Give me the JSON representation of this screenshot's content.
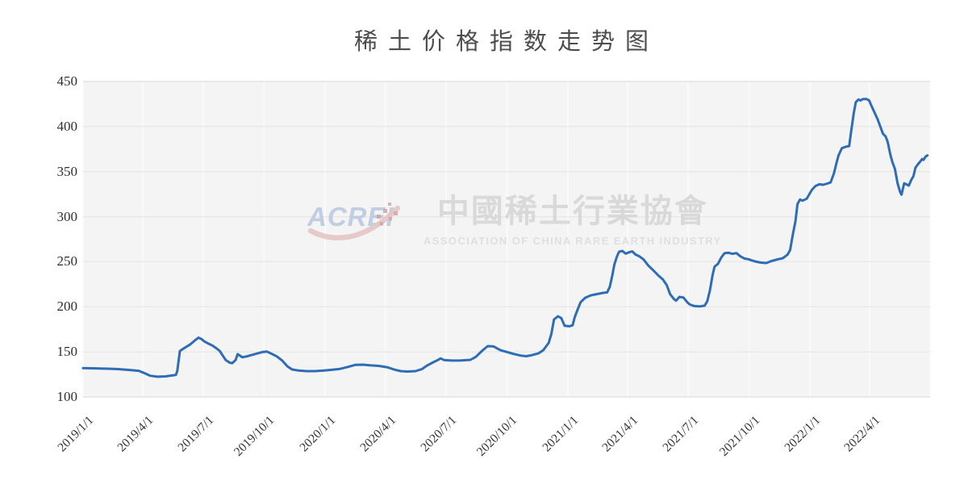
{
  "page": {
    "background": "#ffffff"
  },
  "watermark": {
    "logo_text": "ACREI",
    "chinese": "中國稀土行業協會",
    "english": "ASSOCIATION OF CHINA RARE EARTH INDUSTRY",
    "logo_color": "#b7c7e1",
    "swoosh_color": "#e2bebe",
    "dot_color": "#d68f8f",
    "chinese_color": "#d5d5d5",
    "english_color": "#dcdcdc"
  },
  "chart_data": {
    "type": "line",
    "title": "稀土价格指数走势图",
    "series_name": "稀土价格指数",
    "line_color": "#2e6cb5",
    "plot_bg": "#f4f4f4",
    "h_grid_color": "#e9e9e9",
    "v_grid_color": "#fafafa",
    "grid": true,
    "legend": "none",
    "ylim": [
      100,
      450
    ],
    "y_tick_step": 50,
    "y_tick_labels": [
      "450",
      "400",
      "350",
      "300",
      "250",
      "200",
      "150",
      "100"
    ],
    "x_ticks": [
      "2019/1/1",
      "2019/4/1",
      "2019/7/1",
      "2019/10/1",
      "2020/1/1",
      "2020/4/1",
      "2020/7/1",
      "2020/10/1",
      "2021/1/1",
      "2021/4/1",
      "2021/7/1",
      "2021/10/1",
      "2022/1/1",
      "2022/4/1"
    ],
    "x_axis_end": "2022/7/1",
    "points": [
      [
        "2019/1/1",
        132
      ],
      [
        "2019/1/16",
        131.8
      ],
      [
        "2019/2/3",
        131.4
      ],
      [
        "2019/2/21",
        131
      ],
      [
        "2019/3/11",
        130
      ],
      [
        "2019/3/26",
        129
      ],
      [
        "2019/4/5",
        126
      ],
      [
        "2019/4/12",
        123.5
      ],
      [
        "2019/4/23",
        122.5
      ],
      [
        "2019/5/5",
        122.8
      ],
      [
        "2019/5/15",
        123.8
      ],
      [
        "2019/5/21",
        124.5
      ],
      [
        "2019/5/23",
        129
      ],
      [
        "2019/5/27",
        151
      ],
      [
        "2019/6/2",
        154
      ],
      [
        "2019/6/11",
        158
      ],
      [
        "2019/6/19",
        163
      ],
      [
        "2019/6/24",
        165.8
      ],
      [
        "2019/6/29",
        164
      ],
      [
        "2019/7/2",
        162
      ],
      [
        "2019/7/8",
        159.5
      ],
      [
        "2019/7/15",
        157
      ],
      [
        "2019/7/21",
        154
      ],
      [
        "2019/7/26",
        151
      ],
      [
        "2019/7/30",
        146.5
      ],
      [
        "2019/8/4",
        141
      ],
      [
        "2019/8/10",
        138
      ],
      [
        "2019/8/14",
        137.5
      ],
      [
        "2019/8/19",
        141
      ],
      [
        "2019/8/22",
        147.5
      ],
      [
        "2019/8/29",
        144
      ],
      [
        "2019/9/5",
        145
      ],
      [
        "2019/9/12",
        146.5
      ],
      [
        "2019/9/19",
        148
      ],
      [
        "2019/9/28",
        149.8
      ],
      [
        "2019/10/5",
        150.4
      ],
      [
        "2019/10/12",
        148
      ],
      [
        "2019/10/20",
        145
      ],
      [
        "2019/10/28",
        140.5
      ],
      [
        "2019/11/5",
        134
      ],
      [
        "2019/11/12",
        130.5
      ],
      [
        "2019/11/22",
        129.3
      ],
      [
        "2019/12/4",
        128.6
      ],
      [
        "2019/12/16",
        128.6
      ],
      [
        "2019/12/28",
        129.2
      ],
      [
        "2020/1/9",
        130
      ],
      [
        "2020/1/22",
        131
      ],
      [
        "2020/2/3",
        133
      ],
      [
        "2020/2/15",
        135.5
      ],
      [
        "2020/2/27",
        135.8
      ],
      [
        "2020/3/10",
        135
      ],
      [
        "2020/3/22",
        134.5
      ],
      [
        "2020/4/3",
        133
      ],
      [
        "2020/4/16",
        130
      ],
      [
        "2020/4/24",
        128.6
      ],
      [
        "2020/5/4",
        128.2
      ],
      [
        "2020/5/16",
        128.6
      ],
      [
        "2020/5/26",
        131
      ],
      [
        "2020/6/3",
        135
      ],
      [
        "2020/6/12",
        138.5
      ],
      [
        "2020/6/19",
        141
      ],
      [
        "2020/6/23",
        142.8
      ],
      [
        "2020/6/28",
        141
      ],
      [
        "2020/7/10",
        140.4
      ],
      [
        "2020/7/24",
        140.5
      ],
      [
        "2020/8/7",
        141.2
      ],
      [
        "2020/8/15",
        144.5
      ],
      [
        "2020/8/25",
        151.5
      ],
      [
        "2020/9/2",
        156.4
      ],
      [
        "2020/9/11",
        156
      ],
      [
        "2020/9/21",
        152
      ],
      [
        "2020/9/30",
        150
      ],
      [
        "2020/10/10",
        148
      ],
      [
        "2020/10/21",
        146
      ],
      [
        "2020/10/30",
        145.2
      ],
      [
        "2020/11/8",
        146.5
      ],
      [
        "2020/11/18",
        148.5
      ],
      [
        "2020/11/25",
        152
      ],
      [
        "2020/12/3",
        160
      ],
      [
        "2020/12/7",
        170
      ],
      [
        "2020/12/11",
        186
      ],
      [
        "2020/12/17",
        189.5
      ],
      [
        "2020/12/22",
        187.5
      ],
      [
        "2020/12/27",
        179
      ],
      [
        "2021/1/3",
        178.4
      ],
      [
        "2021/1/8",
        179.5
      ],
      [
        "2021/1/11",
        188
      ],
      [
        "2021/1/15",
        196
      ],
      [
        "2021/1/20",
        205
      ],
      [
        "2021/1/27",
        210
      ],
      [
        "2021/2/4",
        212.6
      ],
      [
        "2021/2/13",
        214
      ],
      [
        "2021/2/22",
        215.4
      ],
      [
        "2021/3/1",
        216
      ],
      [
        "2021/3/5",
        222
      ],
      [
        "2021/3/9",
        235
      ],
      [
        "2021/3/12",
        247
      ],
      [
        "2021/3/16",
        256
      ],
      [
        "2021/3/19",
        261
      ],
      [
        "2021/3/24",
        262
      ],
      [
        "2021/3/29",
        259
      ],
      [
        "2021/4/3",
        260.5
      ],
      [
        "2021/4/8",
        261.5
      ],
      [
        "2021/4/13",
        258
      ],
      [
        "2021/4/19",
        255.8
      ],
      [
        "2021/4/25",
        252.5
      ],
      [
        "2021/5/2",
        246
      ],
      [
        "2021/5/9",
        241
      ],
      [
        "2021/5/17",
        235
      ],
      [
        "2021/5/24",
        230.5
      ],
      [
        "2021/5/30",
        224
      ],
      [
        "2021/6/4",
        214
      ],
      [
        "2021/6/10",
        208.5
      ],
      [
        "2021/6/13",
        206.8
      ],
      [
        "2021/6/18",
        211
      ],
      [
        "2021/6/24",
        210.4
      ],
      [
        "2021/6/30",
        205
      ],
      [
        "2021/7/4",
        202.5
      ],
      [
        "2021/7/10",
        201
      ],
      [
        "2021/7/18",
        200.4
      ],
      [
        "2021/7/26",
        201.2
      ],
      [
        "2021/7/30",
        206
      ],
      [
        "2021/8/3",
        218
      ],
      [
        "2021/8/7",
        235
      ],
      [
        "2021/8/10",
        244.6
      ],
      [
        "2021/8/15",
        247.5
      ],
      [
        "2021/8/20",
        254.5
      ],
      [
        "2021/8/25",
        259.4
      ],
      [
        "2021/8/31",
        260
      ],
      [
        "2021/9/6",
        258.8
      ],
      [
        "2021/9/12",
        259.6
      ],
      [
        "2021/9/18",
        256
      ],
      [
        "2021/9/24",
        253.6
      ],
      [
        "2021/9/30",
        252.8
      ],
      [
        "2021/10/6",
        251.4
      ],
      [
        "2021/10/12",
        250
      ],
      [
        "2021/10/19",
        249
      ],
      [
        "2021/10/27",
        248.6
      ],
      [
        "2021/11/4",
        250.8
      ],
      [
        "2021/11/12",
        252.4
      ],
      [
        "2021/11/21",
        254
      ],
      [
        "2021/11/28",
        257.8
      ],
      [
        "2021/12/2",
        263
      ],
      [
        "2021/12/6",
        280
      ],
      [
        "2021/12/10",
        295
      ],
      [
        "2021/12/13",
        314
      ],
      [
        "2021/12/17",
        319
      ],
      [
        "2021/12/21",
        317.8
      ],
      [
        "2021/12/27",
        320
      ],
      [
        "2022/1/4",
        330
      ],
      [
        "2022/1/9",
        334
      ],
      [
        "2022/1/15",
        336
      ],
      [
        "2022/1/21",
        335.4
      ],
      [
        "2022/1/27",
        336.8
      ],
      [
        "2022/2/1",
        338
      ],
      [
        "2022/2/6",
        348
      ],
      [
        "2022/2/10",
        360
      ],
      [
        "2022/2/13",
        368
      ],
      [
        "2022/2/18",
        376
      ],
      [
        "2022/2/24",
        377.6
      ],
      [
        "2022/3/1",
        378.4
      ],
      [
        "2022/3/4",
        395
      ],
      [
        "2022/3/8",
        415
      ],
      [
        "2022/3/11",
        427
      ],
      [
        "2022/3/15",
        430
      ],
      [
        "2022/3/18",
        429
      ],
      [
        "2022/3/22",
        430.6
      ],
      [
        "2022/3/27",
        430.6
      ],
      [
        "2022/3/31",
        429
      ],
      [
        "2022/4/3",
        424
      ],
      [
        "2022/4/8",
        416
      ],
      [
        "2022/4/13",
        408
      ],
      [
        "2022/4/17",
        400
      ],
      [
        "2022/4/21",
        392
      ],
      [
        "2022/4/25",
        389
      ],
      [
        "2022/4/28",
        383
      ],
      [
        "2022/5/2",
        369
      ],
      [
        "2022/5/5",
        361
      ],
      [
        "2022/5/9",
        353
      ],
      [
        "2022/5/13",
        337
      ],
      [
        "2022/5/17",
        327
      ],
      [
        "2022/5/19",
        324.5
      ],
      [
        "2022/5/23",
        337
      ],
      [
        "2022/5/26",
        336
      ],
      [
        "2022/5/30",
        334.5
      ],
      [
        "2022/6/2",
        340
      ],
      [
        "2022/6/6",
        345
      ],
      [
        "2022/6/9",
        354.5
      ],
      [
        "2022/6/13",
        358.5
      ],
      [
        "2022/6/16",
        361
      ],
      [
        "2022/6/19",
        364
      ],
      [
        "2022/6/21",
        363
      ],
      [
        "2022/6/24",
        366.5
      ],
      [
        "2022/6/27",
        368
      ]
    ]
  }
}
